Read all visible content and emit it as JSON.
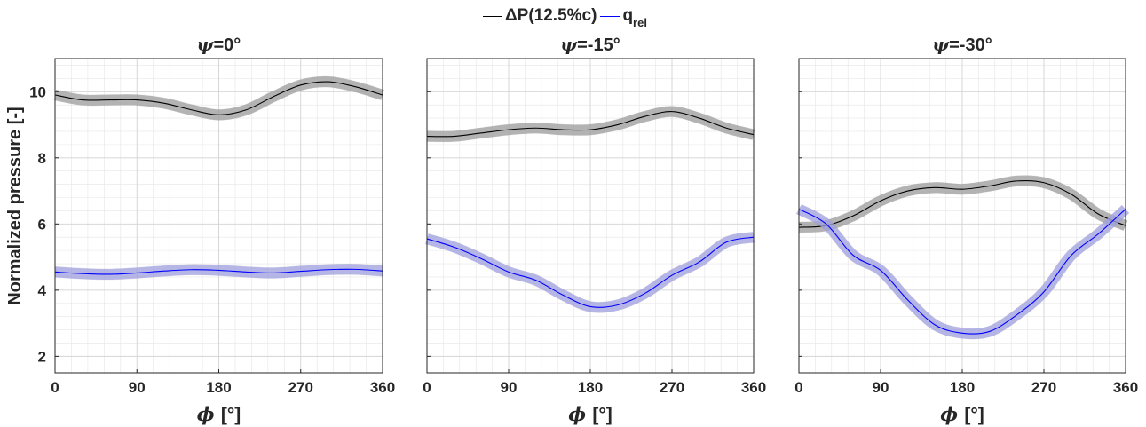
{
  "legend": {
    "dp_label": "ΔP(12.5%c)",
    "q_label_main": "q",
    "q_label_sub": "rel"
  },
  "colors": {
    "dp_line": "#000000",
    "dp_band": "#b0b0b0",
    "q_line": "#0000ff",
    "q_band": "#b3b3ff",
    "grid": "#e6e6e6",
    "axes": "#262626"
  },
  "ylabel": "Normalized pressure [-]",
  "xlabel_symbol": "ϕ",
  "xlabel_unit": "[°]",
  "chart_data": [
    {
      "type": "line",
      "title_symbol": "ψ",
      "title_value": "=0°",
      "xlim": [
        0,
        360
      ],
      "ylim": [
        1.5,
        11
      ],
      "xticks": [
        0,
        90,
        180,
        270,
        360
      ],
      "yticks": [
        2,
        4,
        6,
        8,
        10
      ],
      "grid": true,
      "x": [
        0,
        30,
        60,
        90,
        120,
        150,
        180,
        210,
        240,
        270,
        300,
        330,
        360
      ],
      "series": [
        {
          "key": "dp",
          "values": [
            9.9,
            9.75,
            9.75,
            9.75,
            9.65,
            9.45,
            9.3,
            9.45,
            9.85,
            10.2,
            10.3,
            10.15,
            9.9
          ]
        },
        {
          "key": "q",
          "values": [
            4.55,
            4.5,
            4.48,
            4.52,
            4.58,
            4.62,
            4.6,
            4.55,
            4.52,
            4.57,
            4.62,
            4.63,
            4.58
          ]
        }
      ]
    },
    {
      "type": "line",
      "title_symbol": "ψ",
      "title_value": "=-15°",
      "xlim": [
        0,
        360
      ],
      "ylim": [
        1.5,
        11
      ],
      "xticks": [
        0,
        90,
        180,
        270,
        360
      ],
      "yticks": [
        2,
        4,
        6,
        8,
        10
      ],
      "grid": true,
      "x": [
        0,
        30,
        60,
        90,
        120,
        150,
        180,
        210,
        240,
        270,
        300,
        330,
        360
      ],
      "series": [
        {
          "key": "dp",
          "values": [
            8.65,
            8.65,
            8.75,
            8.85,
            8.9,
            8.85,
            8.85,
            9.0,
            9.25,
            9.4,
            9.2,
            8.9,
            8.7
          ]
        },
        {
          "key": "q",
          "values": [
            5.55,
            5.3,
            4.95,
            4.55,
            4.3,
            3.85,
            3.5,
            3.55,
            3.9,
            4.45,
            4.85,
            5.45,
            5.6
          ]
        }
      ]
    },
    {
      "type": "line",
      "title_symbol": "ψ",
      "title_value": "=-30°",
      "xlim": [
        0,
        360
      ],
      "ylim": [
        1.5,
        11
      ],
      "xticks": [
        0,
        90,
        180,
        270,
        360
      ],
      "yticks": [
        2,
        4,
        6,
        8,
        10
      ],
      "grid": true,
      "x": [
        0,
        30,
        60,
        90,
        120,
        150,
        180,
        210,
        240,
        270,
        300,
        330,
        360
      ],
      "series": [
        {
          "key": "dp",
          "values": [
            5.9,
            5.95,
            6.25,
            6.7,
            7.0,
            7.1,
            7.05,
            7.15,
            7.3,
            7.25,
            6.9,
            6.3,
            5.95
          ]
        },
        {
          "key": "q",
          "values": [
            6.45,
            6.0,
            5.05,
            4.6,
            3.7,
            2.95,
            2.7,
            2.75,
            3.25,
            3.95,
            5.05,
            5.7,
            6.45
          ]
        }
      ]
    }
  ]
}
